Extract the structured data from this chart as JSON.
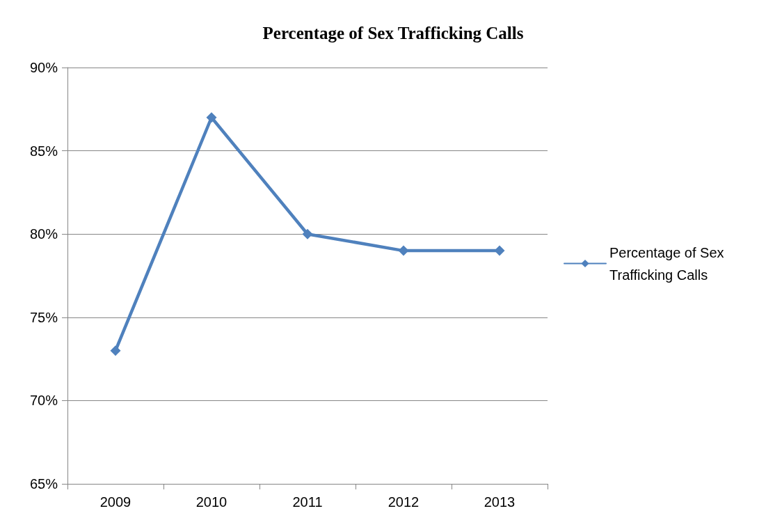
{
  "chart_data": {
    "type": "line",
    "title": "Percentage of Sex Trafficking Calls",
    "categories": [
      "2009",
      "2010",
      "2011",
      "2012",
      "2013"
    ],
    "series": [
      {
        "name": "Percentage of Sex Trafficking Calls",
        "color": "#4f81bd",
        "values": [
          73,
          87,
          80,
          79,
          79
        ]
      }
    ],
    "ylim": [
      65,
      90
    ],
    "yticks": [
      {
        "value": 65,
        "label": "65%"
      },
      {
        "value": 70,
        "label": "70%"
      },
      {
        "value": 75,
        "label": "75%"
      },
      {
        "value": 80,
        "label": "80%"
      },
      {
        "value": 85,
        "label": "85%"
      },
      {
        "value": 90,
        "label": "90%"
      }
    ],
    "grid": "y",
    "legend": "right",
    "marker": "diamond",
    "line_style": "solid"
  }
}
